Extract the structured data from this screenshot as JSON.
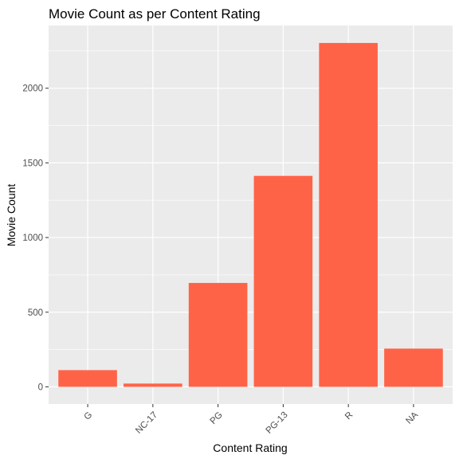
{
  "chart_data": {
    "type": "bar",
    "title": "Movie Count as per Content Rating",
    "xlabel": "Content Rating",
    "ylabel": "Movie Count",
    "categories": [
      "G",
      "NC-17",
      "PG",
      "PG-13",
      "R",
      "NA"
    ],
    "values": [
      112,
      22,
      696,
      1413,
      2303,
      256
    ],
    "yticks": [
      0,
      500,
      1000,
      1500,
      2000
    ],
    "ytick_labels": [
      "0",
      "500",
      "1000",
      "1500",
      "2000"
    ],
    "ylim": [
      -115,
      2420
    ],
    "grid": true,
    "legend": "none",
    "x_tick_rotation": 45,
    "colors": {
      "bar": "#FF6347",
      "panel": "#EBEBEB",
      "grid_major": "#FFFFFF",
      "tick_text": "#4D4D4D",
      "tick_mark": "#333333"
    }
  }
}
